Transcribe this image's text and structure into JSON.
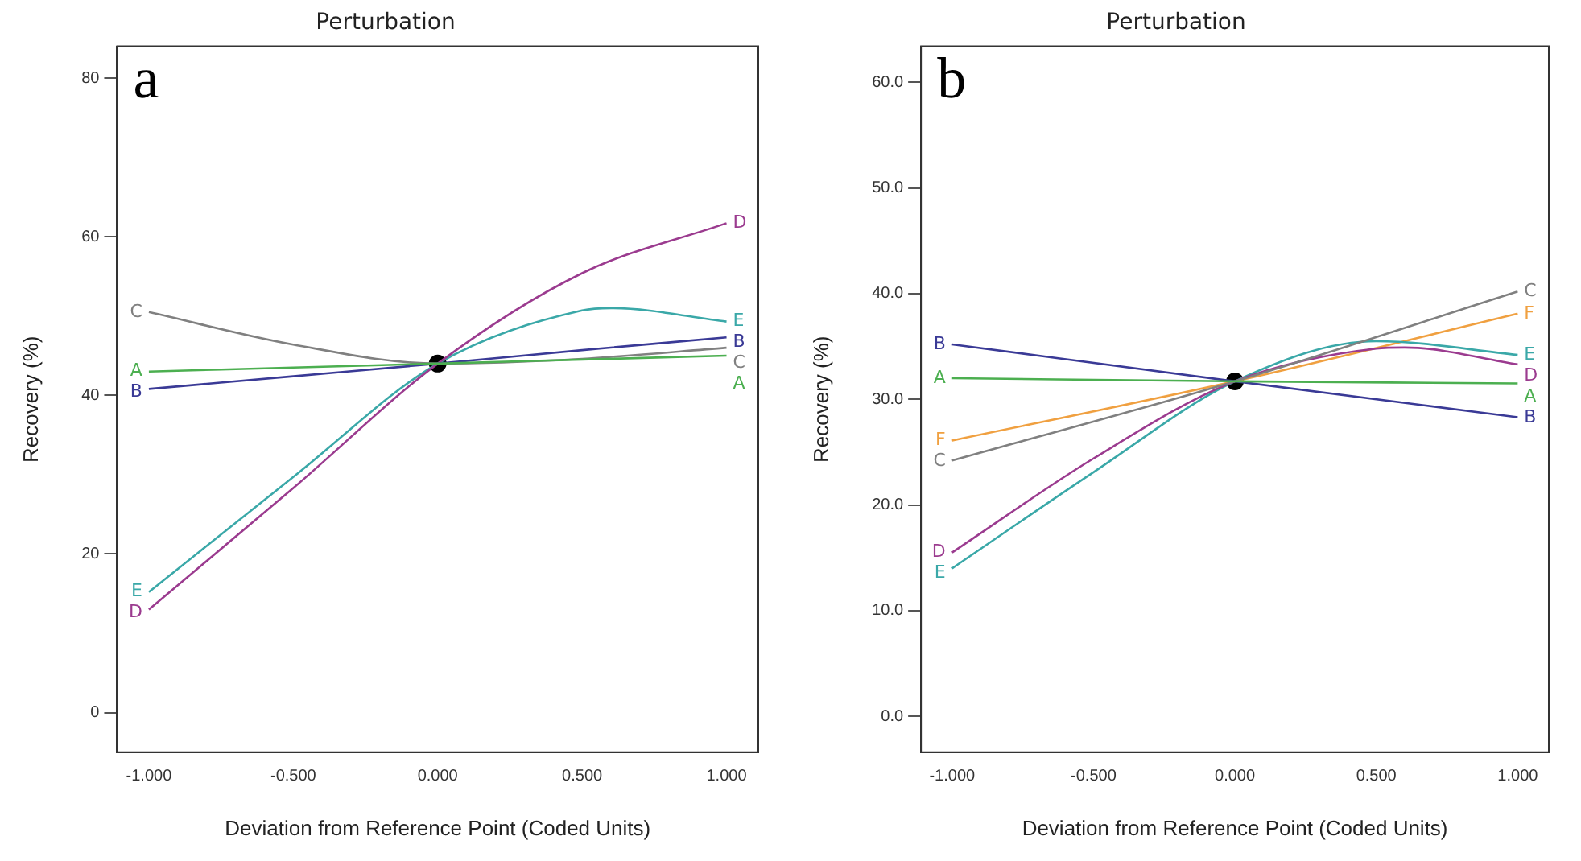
{
  "chart_data": [
    {
      "type": "line",
      "title": "Perturbation",
      "xlabel": "Deviation from Reference Point (Coded Units)",
      "ylabel": "Recovery (%)",
      "annotations": [
        "a"
      ],
      "xlim": [
        -1.11,
        1.11
      ],
      "xticks": [
        {
          "value": -1,
          "label": "-1.000"
        },
        {
          "value": -0.5,
          "label": "-0.500"
        },
        {
          "value": 0,
          "label": "0.000"
        },
        {
          "value": 0.5,
          "label": "0.500"
        },
        {
          "value": 1,
          "label": "1.000"
        }
      ],
      "ylim": [
        -5,
        84
      ],
      "yticks": [
        0,
        20,
        40,
        60,
        80
      ],
      "grid": false,
      "marker": "none",
      "line_style": "solid",
      "series": [
        {
          "name": "A",
          "color": "#4caf50",
          "x": [
            -1,
            -0.5,
            0,
            0.5,
            1
          ],
          "values": [
            43,
            43.5,
            44,
            44.5,
            45
          ]
        },
        {
          "name": "B",
          "color": "#3a3a96",
          "x": [
            -1,
            -0.5,
            0,
            0.5,
            1
          ],
          "values": [
            40.8,
            42.4,
            44,
            45.7,
            47.3
          ]
        },
        {
          "name": "C",
          "color": "#808080",
          "x": [
            -1,
            -0.5,
            0,
            0.5,
            1
          ],
          "values": [
            50.5,
            46.4,
            44,
            44.6,
            46
          ]
        },
        {
          "name": "D",
          "color": "#9b3b8f",
          "x": [
            -1,
            -0.5,
            0,
            0.5,
            1
          ],
          "values": [
            13,
            28.3,
            44,
            55.4,
            61.7
          ]
        },
        {
          "name": "E",
          "color": "#3aa8a8",
          "x": [
            -1,
            -0.5,
            0,
            0.5,
            0.6,
            1
          ],
          "values": [
            15.2,
            29.7,
            44,
            50.7,
            51,
            49.3
          ]
        },
        {
          "type": "scatter",
          "marker": "circle",
          "color": "#000000",
          "x": [
            0
          ],
          "values": [
            44
          ]
        }
      ]
    },
    {
      "type": "line",
      "title": "Perturbation",
      "xlabel": "Deviation from Reference Point (Coded Units)",
      "ylabel": "Recovery (%)",
      "annotations": [
        "b"
      ],
      "xlim": [
        -1.11,
        1.11
      ],
      "xticks": [
        {
          "value": -1,
          "label": "-1.000"
        },
        {
          "value": -0.5,
          "label": "-0.500"
        },
        {
          "value": 0,
          "label": "0.000"
        },
        {
          "value": 0.5,
          "label": "0.500"
        },
        {
          "value": 1,
          "label": "1.000"
        }
      ],
      "ylim": [
        -3.4,
        63.4
      ],
      "yticks": [
        {
          "value": 0,
          "label": "0.0"
        },
        {
          "value": 10,
          "label": "10.0"
        },
        {
          "value": 20,
          "label": "20.0"
        },
        {
          "value": 30,
          "label": "30.0"
        },
        {
          "value": 40,
          "label": "40.0"
        },
        {
          "value": 50,
          "label": "50.0"
        },
        {
          "value": 60,
          "label": "60.0"
        }
      ],
      "grid": false,
      "marker": "none",
      "line_style": "solid",
      "series": [
        {
          "name": "A",
          "color": "#4caf50",
          "x": [
            -1,
            0,
            1
          ],
          "values": [
            32,
            31.7,
            31.5
          ]
        },
        {
          "name": "B",
          "color": "#3a3a96",
          "x": [
            -1,
            0,
            1
          ],
          "values": [
            35.2,
            31.7,
            28.3
          ]
        },
        {
          "name": "C",
          "color": "#808080",
          "x": [
            -1,
            0,
            1
          ],
          "values": [
            24.2,
            31.7,
            40.2
          ]
        },
        {
          "name": "D",
          "color": "#9b3b8f",
          "x": [
            -1,
            -0.5,
            0,
            0.5,
            0.6,
            1
          ],
          "values": [
            15.5,
            24.4,
            31.7,
            34.8,
            34.9,
            33.3
          ]
        },
        {
          "name": "E",
          "color": "#3aa8a8",
          "x": [
            -1,
            -0.5,
            0,
            0.5,
            1
          ],
          "values": [
            14,
            23.1,
            31.7,
            35.5,
            34.2
          ]
        },
        {
          "name": "F",
          "color": "#f0a040",
          "x": [
            -1,
            0,
            1
          ],
          "values": [
            26.1,
            31.7,
            38.1
          ]
        },
        {
          "type": "scatter",
          "marker": "circle",
          "color": "#000000",
          "x": [
            0
          ],
          "values": [
            31.7
          ]
        }
      ]
    }
  ]
}
